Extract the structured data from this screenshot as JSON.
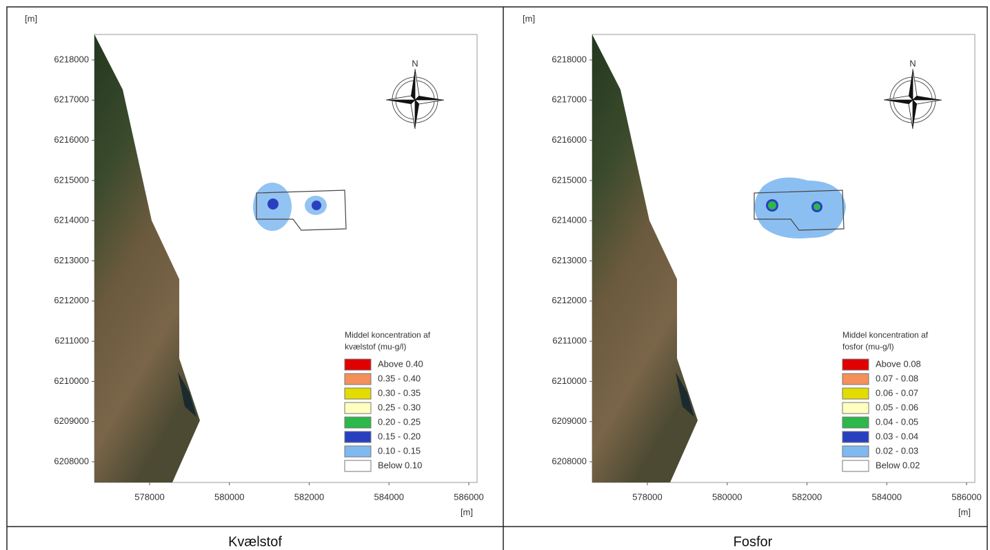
{
  "panels": [
    {
      "y_unit": "[m]",
      "x_unit": "[m]",
      "north": "N",
      "yticks": [
        6218000,
        6217000,
        6216000,
        6215000,
        6214000,
        6213000,
        6212000,
        6211000,
        6210000,
        6209000,
        6208000
      ],
      "xticks": [
        578000,
        580000,
        582000,
        584000,
        586000
      ],
      "legend": {
        "title": [
          "Middel koncentration af",
          "kvælstof (mu-g/l)"
        ],
        "items": [
          {
            "label": "Above 0.40",
            "color": "#e00000"
          },
          {
            "label": "0.35 - 0.40",
            "color": "#f4905a"
          },
          {
            "label": "0.30 - 0.35",
            "color": "#e2dc00"
          },
          {
            "label": "0.25 - 0.30",
            "color": "#ffffc0"
          },
          {
            "label": "0.20 - 0.25",
            "color": "#2cb84a"
          },
          {
            "label": "0.15 - 0.20",
            "color": "#2840c0"
          },
          {
            "label": "0.10 - 0.15",
            "color": "#80b8f0"
          },
          {
            "label": "Below 0.10",
            "color": "#ffffff"
          }
        ]
      },
      "caption": "Kvælstof"
    },
    {
      "y_unit": "[m]",
      "x_unit": "[m]",
      "north": "N",
      "yticks": [
        6218000,
        6217000,
        6216000,
        6215000,
        6214000,
        6213000,
        6212000,
        6211000,
        6210000,
        6209000,
        6208000
      ],
      "xticks": [
        578000,
        580000,
        582000,
        584000,
        586000
      ],
      "legend": {
        "title": [
          "Middel koncentration af",
          "fosfor (mu-g/l)"
        ],
        "items": [
          {
            "label": "Above 0.08",
            "color": "#e00000"
          },
          {
            "label": "0.07 - 0.08",
            "color": "#f4905a"
          },
          {
            "label": "0.06 - 0.07",
            "color": "#e2dc00"
          },
          {
            "label": "0.05 - 0.06",
            "color": "#ffffc0"
          },
          {
            "label": "0.04 - 0.05",
            "color": "#2cb84a"
          },
          {
            "label": "0.03 - 0.04",
            "color": "#2840c0"
          },
          {
            "label": "0.02 - 0.03",
            "color": "#80b8f0"
          },
          {
            "label": "Below 0.02",
            "color": "#ffffff"
          }
        ]
      },
      "caption": "Fosfor"
    }
  ]
}
